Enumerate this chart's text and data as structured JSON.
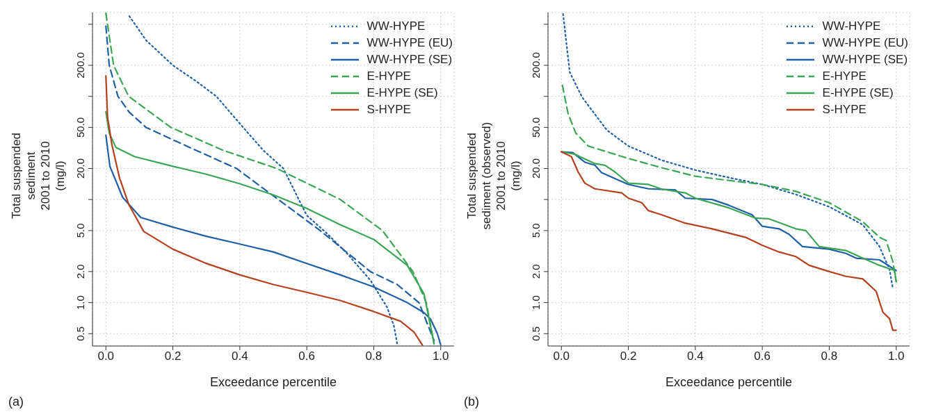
{
  "chart_data": [
    {
      "type": "line",
      "xlabel": "Exceedance percentile",
      "ylabel": "Total suspended\nsediment\n2001 to 2010\n(mg/l)",
      "annotations": [
        "(a)"
      ],
      "log": "y",
      "grid": true,
      "legend": "top right",
      "xlim": [
        -0.04,
        1.04
      ],
      "xticks": [
        {
          "value": 0,
          "label": "0.0"
        },
        {
          "value": 0.2,
          "label": "0.2"
        },
        {
          "value": 0.4,
          "label": "0.4"
        },
        {
          "value": 0.6,
          "label": "0.6"
        },
        {
          "value": 0.8,
          "label": "0.8"
        },
        {
          "value": 1,
          "label": "1.0"
        }
      ],
      "ylim": [
        0.38,
        650
      ],
      "yticks": [
        {
          "value": 0.5,
          "label": "0.5"
        },
        {
          "value": 1,
          "label": "1.0"
        },
        {
          "value": 2,
          "label": "2.0"
        },
        {
          "value": 5,
          "label": "5.0"
        },
        {
          "value": 10,
          "label": null
        },
        {
          "value": 20,
          "label": "20.0"
        },
        {
          "value": 50,
          "label": "50.0"
        },
        {
          "value": 100,
          "label": null
        },
        {
          "value": 200,
          "label": "200.0"
        },
        {
          "value": 500,
          "label": null
        }
      ],
      "series": [
        {
          "name": "WW-HYPE",
          "color": "#1f5fa6",
          "line_style": "dotted",
          "x": [
            0.07,
            0.12,
            0.2,
            0.27,
            0.33,
            0.41,
            0.47,
            0.53,
            0.6,
            0.66,
            0.72,
            0.79,
            0.84,
            0.86,
            0.87
          ],
          "values": [
            600,
            350,
            200,
            140,
            100,
            50,
            30,
            20,
            7,
            4.7,
            3,
            1.65,
            0.9,
            0.6,
            0.4
          ]
        },
        {
          "name": "WW-HYPE (EU)",
          "color": "#1f5fa6",
          "line_style": "dashed",
          "x": [
            0,
            0.01,
            0.036,
            0.07,
            0.12,
            0.25,
            0.39,
            0.515,
            0.64,
            0.79,
            0.87,
            0.935,
            0.98
          ],
          "values": [
            480,
            200,
            100,
            70,
            50,
            32,
            20,
            10,
            5,
            2,
            1.5,
            1,
            0.43
          ]
        },
        {
          "name": "WW-HYPE (SE)",
          "color": "#1f5fa6",
          "line_style": "solid",
          "x": [
            0,
            0.012,
            0.05,
            0.104,
            0.2,
            0.3,
            0.4,
            0.5,
            0.6,
            0.7,
            0.8,
            0.9,
            0.95,
            0.97,
            0.99,
            1.0
          ],
          "values": [
            42,
            21,
            10.5,
            6.7,
            5.4,
            4.4,
            3.7,
            3.1,
            2.4,
            1.86,
            1.42,
            1.0,
            0.8,
            0.69,
            0.5,
            0.39
          ]
        },
        {
          "name": "E-HYPE",
          "color": "#3aa655",
          "line_style": "dashed",
          "x": [
            0,
            0.023,
            0.068,
            0.194,
            0.35,
            0.51,
            0.7,
            0.826,
            0.917,
            0.957,
            0.98
          ],
          "values": [
            640,
            200,
            100,
            50,
            30,
            20,
            10,
            5,
            2,
            1,
            0.4
          ]
        },
        {
          "name": "E-HYPE (SE)",
          "color": "#3aa655",
          "line_style": "solid",
          "x": [
            0,
            0.01,
            0.03,
            0.086,
            0.2,
            0.3,
            0.4,
            0.5,
            0.6,
            0.7,
            0.8,
            0.9,
            0.95,
            0.98
          ],
          "values": [
            71,
            44,
            32,
            26,
            21,
            17.6,
            14.2,
            11.1,
            8.2,
            5.7,
            4.1,
            2.3,
            1.22,
            0.4
          ]
        },
        {
          "name": "S-HYPE",
          "color": "#b5401e",
          "line_style": "solid",
          "x": [
            0,
            0.005,
            0.018,
            0.04,
            0.068,
            0.113,
            0.2,
            0.3,
            0.4,
            0.5,
            0.6,
            0.7,
            0.8,
            0.88,
            0.92,
            0.945
          ],
          "values": [
            158,
            63,
            34,
            16.5,
            9,
            4.9,
            3.3,
            2.4,
            1.86,
            1.5,
            1.26,
            1.05,
            0.82,
            0.66,
            0.52,
            0.39
          ]
        }
      ]
    },
    {
      "type": "line",
      "xlabel": "Exceedance percentile",
      "ylabel": "Total suspended\nsediment (observed)\n2001 to 2010\n(mg/l)",
      "annotations": [
        "(b)"
      ],
      "log": "y",
      "grid": true,
      "legend": "top right",
      "xlim": [
        -0.04,
        1.04
      ],
      "xticks": [
        {
          "value": 0,
          "label": "0.0"
        },
        {
          "value": 0.2,
          "label": "0.2"
        },
        {
          "value": 0.4,
          "label": "0.4"
        },
        {
          "value": 0.6,
          "label": "0.6"
        },
        {
          "value": 0.8,
          "label": "0.8"
        },
        {
          "value": 1,
          "label": "1.0"
        }
      ],
      "ylim": [
        0.38,
        650
      ],
      "yticks": [
        {
          "value": 0.5,
          "label": "0.5"
        },
        {
          "value": 1,
          "label": "1.0"
        },
        {
          "value": 2,
          "label": "2.0"
        },
        {
          "value": 5,
          "label": "5.0"
        },
        {
          "value": 10,
          "label": null
        },
        {
          "value": 20,
          "label": "20.0"
        },
        {
          "value": 50,
          "label": "50.0"
        },
        {
          "value": 100,
          "label": null
        },
        {
          "value": 200,
          "label": "200.0"
        },
        {
          "value": 500,
          "label": null
        }
      ],
      "series": [
        {
          "name": "WW-HYPE",
          "color": "#1f5fa6",
          "line_style": "dotted",
          "x": [
            0.005,
            0.025,
            0.062,
            0.136,
            0.2,
            0.3,
            0.4,
            0.5,
            0.6,
            0.7,
            0.8,
            0.9,
            0.95,
            0.98,
            0.99
          ],
          "values": [
            630,
            171,
            98,
            47,
            33,
            24,
            19.3,
            16.3,
            14,
            11.2,
            8.5,
            5.7,
            3.5,
            2.1,
            1.37
          ]
        },
        {
          "name": "WW-HYPE (EU)",
          "color": "#1f5fa6",
          "line_style": "dashed"
        },
        {
          "name": "WW-HYPE (SE)",
          "color": "#1f5fa6",
          "line_style": "solid",
          "x": [
            0,
            0.034,
            0.07,
            0.1,
            0.12,
            0.2,
            0.26,
            0.34,
            0.37,
            0.45,
            0.5,
            0.57,
            0.6,
            0.65,
            0.68,
            0.72,
            0.8,
            0.85,
            0.88,
            0.95,
            1.0
          ],
          "values": [
            29,
            28.5,
            23,
            21.5,
            18.2,
            14,
            12.7,
            12.4,
            10.3,
            10,
            8.8,
            7.1,
            5.5,
            5.2,
            4.6,
            3.5,
            3.3,
            3.0,
            2.7,
            2.6,
            2.05
          ]
        },
        {
          "name": "E-HYPE",
          "color": "#3aa655",
          "line_style": "dashed",
          "x": [
            0.003,
            0.02,
            0.043,
            0.08,
            0.2,
            0.3,
            0.4,
            0.5,
            0.6,
            0.7,
            0.8,
            0.9,
            0.95,
            0.97,
            0.99,
            1.0
          ],
          "values": [
            128,
            68,
            44,
            33,
            25,
            20.3,
            16.8,
            15.3,
            14,
            12,
            9.3,
            6.1,
            4.3,
            4.0,
            2.5,
            1.6
          ]
        },
        {
          "name": "E-HYPE (SE)",
          "color": "#3aa655",
          "line_style": "solid",
          "x": [
            0,
            0.04,
            0.1,
            0.13,
            0.16,
            0.2,
            0.26,
            0.3,
            0.37,
            0.4,
            0.5,
            0.58,
            0.62,
            0.7,
            0.73,
            0.77,
            0.85,
            0.9,
            0.95,
            0.995,
            1.0
          ],
          "values": [
            29,
            27.5,
            22.3,
            21.5,
            18.5,
            14.4,
            14,
            12.6,
            11.6,
            10.3,
            8.3,
            6.6,
            6.5,
            5.2,
            5.0,
            3.5,
            3.2,
            2.7,
            2.3,
            2.05,
            1.6
          ]
        },
        {
          "name": "S-HYPE",
          "color": "#b5401e",
          "line_style": "solid",
          "x": [
            0,
            0.03,
            0.05,
            0.07,
            0.1,
            0.18,
            0.2,
            0.24,
            0.26,
            0.3,
            0.37,
            0.45,
            0.55,
            0.6,
            0.65,
            0.7,
            0.74,
            0.8,
            0.85,
            0.9,
            0.94,
            0.96,
            0.98,
            0.99,
            1.0
          ],
          "values": [
            29,
            26,
            18.5,
            14.4,
            12.7,
            11.6,
            10.3,
            9.3,
            7.8,
            7.1,
            5.9,
            5.2,
            4.3,
            3.6,
            3.1,
            2.8,
            2.3,
            2.0,
            1.8,
            1.7,
            1.29,
            0.81,
            0.7,
            0.54,
            0.54
          ]
        }
      ]
    }
  ]
}
